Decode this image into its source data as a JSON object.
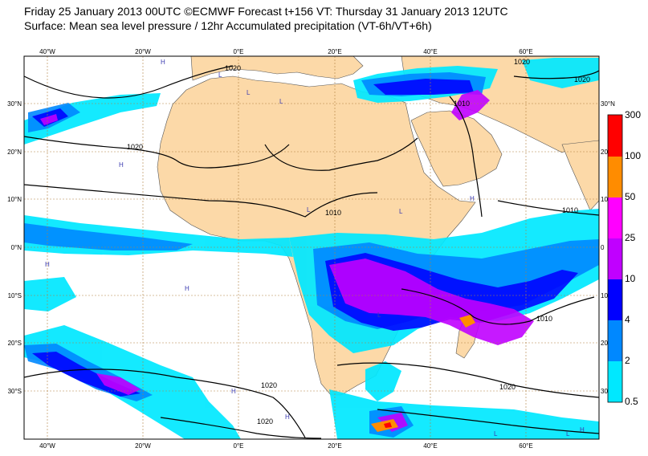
{
  "header": {
    "line1": "Friday 25 January 2013 00UTC ©ECMWF Forecast t+156 VT: Thursday 31 January 2013 12UTC",
    "line2": "Surface: Mean sea level pressure / 12hr Accumulated precipitation (VT-6h/VT+6h)"
  },
  "map": {
    "lon_labels": [
      "40°W",
      "20°W",
      "0°E",
      "20°E",
      "40°E",
      "60°E"
    ],
    "lat_labels_left": [
      "30°N",
      "20°N",
      "10°N",
      "0°N",
      "10°S",
      "20°S",
      "30°S"
    ],
    "lat_labels_right": [
      "30°N",
      "20",
      "10",
      "0",
      "10",
      "20",
      "30"
    ],
    "isobar_labels": [
      "1020",
      "1020",
      "1020",
      "1010",
      "1010",
      "1010",
      "1010",
      "1020",
      "1020",
      "1020",
      "1020"
    ],
    "pressure_centres": [
      "H",
      "H",
      "H",
      "H",
      "L",
      "L",
      "L",
      "L",
      "L",
      "L",
      "H",
      "H",
      "L",
      "L",
      "H",
      "H"
    ],
    "colors": {
      "land": "#fcd9a8",
      "ocean": "#ffffff",
      "isobar": "#000000"
    }
  },
  "colorbar": {
    "labels": [
      "300",
      "100",
      "50",
      "25",
      "10",
      "4",
      "2",
      "0.5"
    ],
    "colors": [
      "#ff0000",
      "#ff8c00",
      "#ff00ff",
      "#c000ff",
      "#0000ff",
      "#0088ff",
      "#00e8ff"
    ]
  }
}
